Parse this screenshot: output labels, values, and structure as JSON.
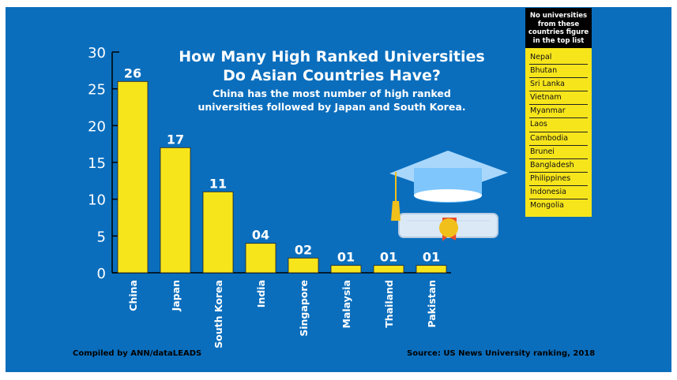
{
  "chart_data": {
    "type": "bar",
    "title": "How Many High Ranked Universities Do Asian Countries Have?",
    "subtitle": "China has the most number of high ranked universities followed by Japan and South Korea.",
    "categories": [
      "China",
      "Japan",
      "South Korea",
      "India",
      "Singapore",
      "Malaysia",
      "Thailand",
      "Pakistan"
    ],
    "values": [
      26,
      17,
      11,
      4,
      2,
      1,
      1,
      1
    ],
    "data_labels": [
      "26",
      "17",
      "11",
      "04",
      "02",
      "01",
      "01",
      "01"
    ],
    "xlabel": "",
    "ylabel": "",
    "ylim": [
      0,
      30
    ],
    "yticks": [
      0,
      5,
      10,
      15,
      20,
      25,
      30
    ],
    "grid": false,
    "bar_color": "#f7e51c",
    "background_color": "#0a6ebd"
  },
  "title_line1": "How Many High Ranked Universities",
  "title_line2": "Do Asian Countries Have?",
  "subtitle_line1": "China has the most number of high ranked",
  "subtitle_line2": "universities followed by Japan and South Korea.",
  "legend": {
    "heading": "No universities from these countries figure in the top list",
    "items": [
      "Nepal",
      "Bhutan",
      "Sri Lanka",
      "Vietnam",
      "Myanmar",
      "Laos",
      "Cambodia",
      "Brunei",
      "Bangladesh",
      "Philippines",
      "Indonesia",
      "Mongolia"
    ]
  },
  "footer": {
    "credit": "Compiled by ANN/dataLEADS",
    "source": "Source: US News University ranking, 2018"
  },
  "illustration": "graduation-cap-and-diploma-icon"
}
